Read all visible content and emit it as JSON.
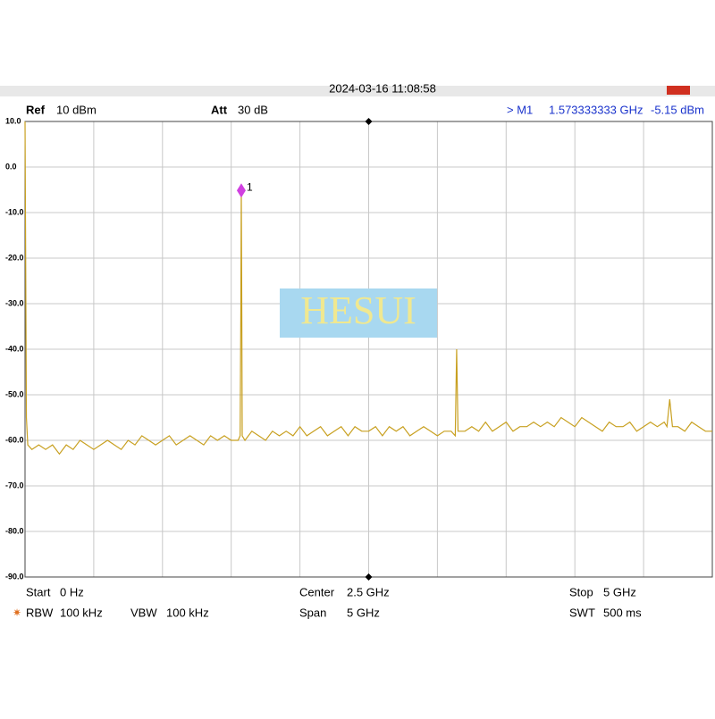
{
  "header": {
    "timestamp": "2024-03-16 11:08:58",
    "ref_label": "Ref",
    "ref_value": "10 dBm",
    "att_label": "Att",
    "att_value": "30 dB",
    "marker_name": "> M1",
    "marker_freq": "1.573333333 GHz",
    "marker_level": "-5.15 dBm"
  },
  "footer": {
    "start_label": "Start",
    "start_value": "0 Hz",
    "center_label": "Center",
    "center_value": "2.5 GHz",
    "stop_label": "Stop",
    "stop_value": "5 GHz",
    "rbw_label": "RBW",
    "rbw_value": "100 kHz",
    "vbw_label": "VBW",
    "vbw_value": "100 kHz",
    "span_label": "Span",
    "span_value": "5 GHz",
    "swt_label": "SWT",
    "swt_value": "500 ms"
  },
  "watermark": "HESUI",
  "chart_data": {
    "type": "line",
    "x": [
      0,
      0.005,
      0.01,
      0.02,
      0.05,
      0.1,
      0.15,
      0.2,
      0.25,
      0.3,
      0.35,
      0.4,
      0.45,
      0.5,
      0.55,
      0.6,
      0.65,
      0.7,
      0.75,
      0.8,
      0.85,
      0.9,
      0.95,
      1.0,
      1.05,
      1.1,
      1.15,
      1.2,
      1.25,
      1.3,
      1.35,
      1.4,
      1.45,
      1.5,
      1.55,
      1.565,
      1.57,
      1.5733,
      1.577,
      1.58,
      1.6,
      1.65,
      1.7,
      1.75,
      1.8,
      1.85,
      1.9,
      1.95,
      2.0,
      2.05,
      2.1,
      2.15,
      2.2,
      2.25,
      2.3,
      2.35,
      2.4,
      2.45,
      2.5,
      2.55,
      2.6,
      2.65,
      2.7,
      2.75,
      2.8,
      2.85,
      2.9,
      2.95,
      3.0,
      3.05,
      3.1,
      3.13,
      3.14,
      3.15,
      3.2,
      3.25,
      3.3,
      3.35,
      3.4,
      3.45,
      3.5,
      3.55,
      3.6,
      3.65,
      3.7,
      3.75,
      3.8,
      3.85,
      3.9,
      3.95,
      4.0,
      4.05,
      4.1,
      4.15,
      4.2,
      4.25,
      4.3,
      4.35,
      4.4,
      4.45,
      4.5,
      4.55,
      4.6,
      4.65,
      4.67,
      4.69,
      4.71,
      4.75,
      4.8,
      4.85,
      4.9,
      4.95,
      5.0
    ],
    "series": [
      {
        "color": "#c8a020",
        "values": [
          10,
          -22,
          -55,
          -61,
          -62,
          -61,
          -62,
          -61,
          -63,
          -61,
          -62,
          -60,
          -61,
          -62,
          -61,
          -60,
          -61,
          -62,
          -60,
          -61,
          -59,
          -60,
          -61,
          -60,
          -59,
          -61,
          -60,
          -59,
          -60,
          -61,
          -59,
          -60,
          -59,
          -60,
          -60,
          -59,
          -32,
          -5.15,
          -32,
          -59,
          -60,
          -58,
          -59,
          -60,
          -58,
          -59,
          -58,
          -59,
          -57,
          -59,
          -58,
          -57,
          -59,
          -58,
          -57,
          -59,
          -57,
          -58,
          -58,
          -57,
          -59,
          -57,
          -58,
          -57,
          -59,
          -58,
          -57,
          -58,
          -59,
          -58,
          -58,
          -59,
          -40,
          -58,
          -58,
          -57,
          -58,
          -56,
          -58,
          -57,
          -56,
          -58,
          -57,
          -57,
          -56,
          -57,
          -56,
          -57,
          -55,
          -56,
          -57,
          -55,
          -56,
          -57,
          -58,
          -56,
          -57,
          -57,
          -56,
          -58,
          -57,
          -56,
          -57,
          -56,
          -57,
          -51,
          -57,
          -57,
          -58,
          -56,
          -57,
          -58,
          -58
        ]
      }
    ],
    "xlim": [
      0,
      5
    ],
    "ylim": [
      -90,
      10
    ],
    "yticks": [
      {
        "value": 10,
        "label": "10.0"
      },
      {
        "value": 0,
        "label": "0.0"
      },
      {
        "value": -10,
        "label": "-10.0"
      },
      {
        "value": -20,
        "label": "-20.0"
      },
      {
        "value": -30,
        "label": "-30.0"
      },
      {
        "value": -40,
        "label": "-40.0"
      },
      {
        "value": -50,
        "label": "-50.0"
      },
      {
        "value": -60,
        "label": "-60.0"
      },
      {
        "value": -70,
        "label": "-70.0"
      },
      {
        "value": -80,
        "label": "-80.0"
      },
      {
        "value": -90,
        "label": "-90.0"
      }
    ],
    "grid": true,
    "marker": {
      "label": "1",
      "x": 1.573333333,
      "y": -5.15,
      "color": "#d040e0"
    }
  }
}
